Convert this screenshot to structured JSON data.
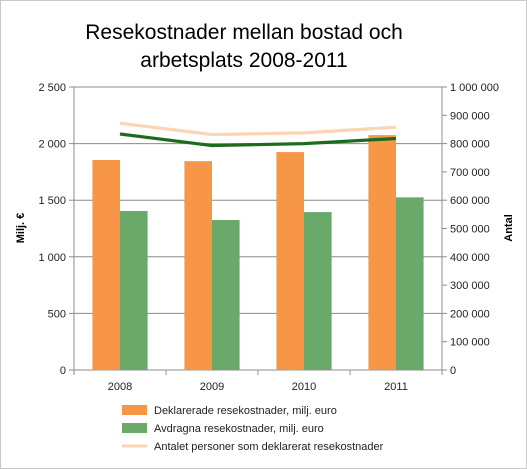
{
  "chart_data": {
    "type": "bar",
    "title_lines": [
      "Resekostnader mellan bostad och",
      "arbetsplats 2008-2011"
    ],
    "categories": [
      "2008",
      "2009",
      "2010",
      "2011"
    ],
    "ylabel": "Milj. €",
    "y2label": "Antal",
    "ylim": [
      0,
      2500
    ],
    "y2lim": [
      0,
      1000000
    ],
    "yticks": [
      0,
      500,
      1000,
      1500,
      2000,
      2500
    ],
    "yticklabels": [
      "0",
      "500",
      "1 000",
      "1 500",
      "2 000",
      "2 500"
    ],
    "y2ticks": [
      0,
      100000,
      200000,
      300000,
      400000,
      500000,
      600000,
      700000,
      800000,
      900000,
      1000000
    ],
    "y2ticklabels": [
      "0",
      "100 000",
      "200 000",
      "300 000",
      "400 000",
      "500 000",
      "600 000",
      "700 000",
      "800 000",
      "900 000",
      "1 000 000"
    ],
    "grid": true,
    "legend_position": "bottom",
    "series": [
      {
        "name": "Deklarerade resekostnader, milj. euro",
        "kind": "bar",
        "axis": "left",
        "color": "#f79646",
        "values": [
          1855,
          1845,
          1925,
          2075
        ]
      },
      {
        "name": "Avdragna resekostnader, milj. euro",
        "kind": "bar",
        "axis": "left",
        "color": "#6aa96a",
        "values": [
          1405,
          1325,
          1395,
          1525
        ]
      },
      {
        "name": "Antalet personer som deklarerat resekostnader",
        "kind": "line",
        "axis": "right",
        "color": "#fcd5b4",
        "values": [
          872000,
          832000,
          838000,
          858000
        ]
      },
      {
        "name": "",
        "kind": "line",
        "axis": "right",
        "color": "#1e6b1e",
        "values": [
          834000,
          793000,
          800000,
          818000
        ]
      }
    ]
  }
}
